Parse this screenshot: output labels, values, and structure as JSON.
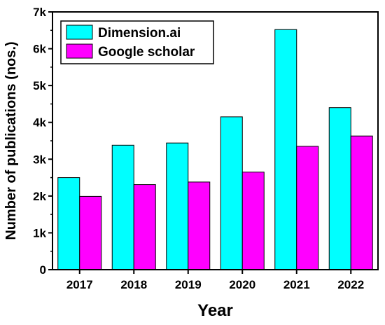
{
  "chart_data": {
    "type": "bar",
    "title": "",
    "xlabel": "Year",
    "ylabel": "Number of publications (nos.)",
    "categories": [
      "2017",
      "2018",
      "2019",
      "2020",
      "2021",
      "2022"
    ],
    "series": [
      {
        "name": "Dimension.ai",
        "color": "#00ffff",
        "values": [
          2500,
          3380,
          3440,
          4150,
          6520,
          4400
        ]
      },
      {
        "name": "Google scholar",
        "color": "#ff00ff",
        "values": [
          1990,
          2310,
          2380,
          2650,
          3350,
          3630
        ]
      }
    ],
    "ylim": [
      0,
      7000
    ],
    "yticks": [
      0,
      1000,
      2000,
      3000,
      4000,
      5000,
      6000,
      7000
    ],
    "ytick_labels": [
      "0",
      "1k",
      "2k",
      "3k",
      "4k",
      "5k",
      "6k",
      "7k"
    ],
    "grid": false,
    "legend_position": "top-left"
  }
}
